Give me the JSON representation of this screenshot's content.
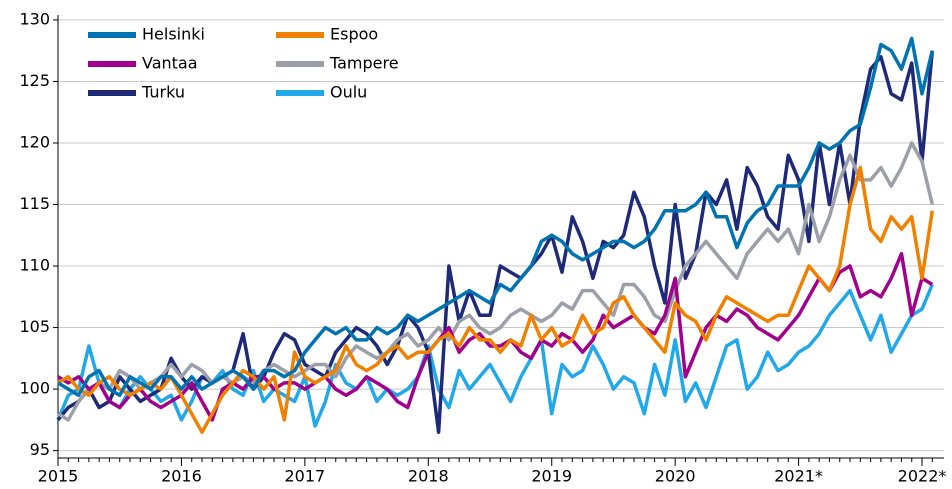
{
  "chart_data": {
    "type": "line",
    "categories": [
      "2015",
      null,
      null,
      null,
      null,
      null,
      null,
      null,
      null,
      null,
      null,
      null,
      "2016",
      null,
      null,
      null,
      null,
      null,
      null,
      null,
      null,
      null,
      null,
      null,
      "2017",
      null,
      null,
      null,
      null,
      null,
      null,
      null,
      null,
      null,
      null,
      null,
      "2018",
      null,
      null,
      null,
      null,
      null,
      null,
      null,
      null,
      null,
      null,
      null,
      "2019",
      null,
      null,
      null,
      null,
      null,
      null,
      null,
      null,
      null,
      null,
      null,
      "2020",
      null,
      null,
      null,
      null,
      null,
      null,
      null,
      null,
      null,
      null,
      null,
      "2021*",
      null,
      null,
      null,
      null,
      null,
      null,
      null,
      null,
      null,
      null,
      null,
      "2022*",
      null
    ],
    "series": [
      {
        "name": "Helsinki",
        "color": "#0073b0",
        "values": [
          100.5,
          100,
          99.5,
          101,
          101.5,
          100,
          99.5,
          101,
          100.5,
          100,
          101,
          101,
          100,
          101,
          100,
          100.5,
          101,
          101.5,
          101,
          100,
          101.5,
          101.5,
          101,
          101.5,
          103,
          104,
          105,
          104.5,
          105,
          104,
          104,
          105,
          104.5,
          105,
          106,
          105.5,
          106,
          106.5,
          107,
          107.5,
          108,
          107.5,
          107,
          108.5,
          108,
          109,
          110,
          112,
          112.5,
          112,
          111,
          110.5,
          111,
          111.5,
          112,
          112,
          111.5,
          112,
          113,
          114.5,
          114.5,
          114.5,
          115,
          116,
          114,
          114,
          111.5,
          113.5,
          114.5,
          115,
          116.5,
          116.5,
          116.5,
          118,
          120,
          119.5,
          120,
          121,
          121.5,
          124.5,
          128,
          127.5,
          126,
          128.5,
          124,
          127.5
        ]
      },
      {
        "name": "Espoo",
        "color": "#f08000",
        "values": [
          100.5,
          101,
          100,
          99.5,
          100.5,
          101,
          100,
          99.5,
          100,
          100.5,
          100,
          101,
          99.5,
          98,
          96.5,
          98,
          99.5,
          100.5,
          101.5,
          101,
          100,
          101,
          97.5,
          103,
          101,
          100.5,
          101,
          101.5,
          103.5,
          102,
          101.5,
          102,
          103,
          103.5,
          102.5,
          103,
          103,
          104,
          104.5,
          103.5,
          105,
          104,
          104,
          103,
          104,
          103.5,
          106,
          104,
          105,
          103.5,
          104,
          106,
          104.5,
          105,
          107,
          107.5,
          106,
          105,
          104,
          103,
          107,
          106,
          105.5,
          104,
          106,
          107.5,
          107,
          106.5,
          106,
          105.5,
          106,
          106,
          108,
          110,
          109,
          108,
          110,
          115,
          118,
          113,
          112,
          114,
          113,
          114,
          109,
          114.5
        ]
      },
      {
        "name": "Vantaa",
        "color": "#a0008c",
        "values": [
          101,
          100.5,
          101,
          100,
          100.5,
          99,
          98.5,
          99.5,
          100,
          99,
          98.5,
          99,
          99.5,
          100.5,
          99,
          97.5,
          100,
          100.5,
          100,
          101,
          101,
          100,
          100.5,
          100.5,
          100,
          100.5,
          101,
          100,
          99.5,
          100,
          101,
          100.5,
          100,
          99,
          98.5,
          101,
          103,
          104,
          105,
          103,
          104,
          104.5,
          103.5,
          103.5,
          104,
          103,
          102.5,
          104,
          103.5,
          104.5,
          104,
          103,
          104,
          106,
          105,
          105.5,
          106,
          105,
          104.5,
          106,
          109,
          101,
          103,
          105,
          106,
          105.5,
          106.5,
          106,
          105,
          104.5,
          104,
          105,
          106,
          107.5,
          109,
          108,
          109.5,
          110,
          107.5,
          108,
          107.5,
          109,
          111,
          106,
          109,
          108.5
        ]
      },
      {
        "name": "Tampere",
        "color": "#9c9ea8",
        "values": [
          98,
          97.5,
          99,
          100,
          100.5,
          100,
          101.5,
          101,
          100,
          100.5,
          101,
          102,
          101,
          102,
          101.5,
          100.5,
          101,
          100.5,
          101,
          100.5,
          101.5,
          102,
          101.5,
          101,
          101.5,
          102,
          102,
          101,
          102.5,
          103.5,
          103,
          102.5,
          103,
          104,
          104.5,
          103.5,
          104,
          105,
          104,
          105.5,
          106,
          105,
          104.5,
          105,
          106,
          106.5,
          106,
          105.5,
          106,
          107,
          106.5,
          108,
          108,
          107,
          106,
          108.5,
          108.5,
          107.5,
          106,
          105.5,
          108,
          110,
          111,
          112,
          111,
          110,
          109,
          111,
          112,
          113,
          112,
          113,
          111,
          115,
          112,
          114,
          117,
          119,
          117,
          117,
          118,
          116.5,
          118,
          120,
          118.5,
          115
        ]
      },
      {
        "name": "Turku",
        "color": "#1e2a78",
        "values": [
          97.5,
          98.5,
          99,
          100,
          98.5,
          99,
          101,
          100,
          99,
          99.5,
          100,
          102.5,
          101,
          100,
          101,
          100.5,
          101,
          101.5,
          104.5,
          100,
          101,
          103,
          104.5,
          104,
          102,
          101.5,
          101,
          103,
          104,
          105,
          104.5,
          103.5,
          102,
          103.5,
          106,
          105,
          103,
          96.5,
          110,
          105.5,
          108,
          106,
          106,
          110,
          109.5,
          109,
          110,
          111,
          112.5,
          109.5,
          114,
          112,
          109,
          112,
          111.5,
          112.5,
          116,
          114,
          110,
          107,
          115,
          109,
          111,
          116,
          115,
          117,
          113,
          118,
          116.5,
          114,
          113,
          119,
          117,
          112,
          120,
          115,
          120,
          115,
          122,
          126,
          127,
          124,
          123.5,
          126.5,
          118.5,
          127.5
        ]
      },
      {
        "name": "Oulu",
        "color": "#20a8e8",
        "values": [
          97.5,
          99.5,
          100,
          103.5,
          100.5,
          99,
          98.5,
          100,
          101,
          100,
          99,
          99.5,
          97.5,
          99,
          101,
          100.5,
          101.5,
          100,
          99.5,
          101.5,
          99,
          100,
          99.5,
          99,
          101,
          97,
          99,
          102,
          100.5,
          100,
          101,
          99,
          100,
          99.5,
          100,
          101,
          103.5,
          100,
          98.5,
          101.5,
          100,
          101,
          102,
          100.5,
          99,
          101,
          102.5,
          104,
          98,
          102,
          101,
          101.5,
          103.5,
          102,
          100,
          101,
          100.5,
          98,
          102,
          99.5,
          104,
          99,
          100.5,
          98.5,
          101,
          103.5,
          104,
          100,
          101,
          103,
          101.5,
          102,
          103,
          103.5,
          104.5,
          106,
          107,
          108,
          106,
          104,
          106,
          103,
          104.5,
          106,
          106.5,
          108.5
        ]
      }
    ],
    "ylim": [
      94.4,
      130.4
    ],
    "yticks": [
      95,
      100,
      105,
      110,
      115,
      120,
      125,
      130
    ],
    "grid": true,
    "legend": "upper-left"
  }
}
